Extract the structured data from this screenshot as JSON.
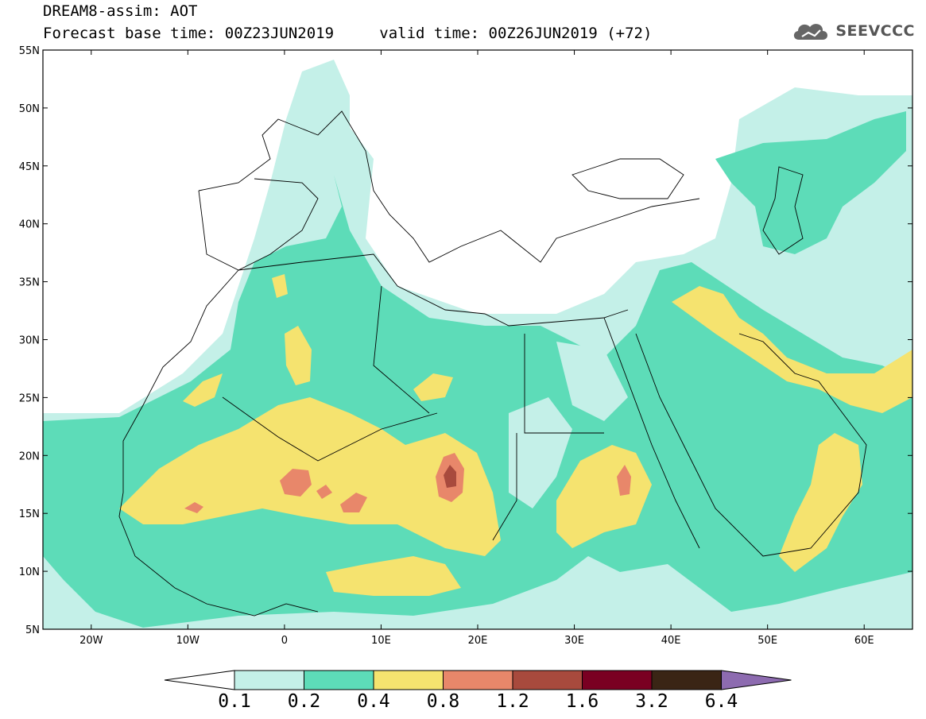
{
  "header": {
    "title": "DREAM8-assim: AOT",
    "base_time": "Forecast base time: 00Z23JUN2019",
    "valid_time": "valid time: 00Z26JUN2019 (+72)"
  },
  "brand": {
    "name": "SEEVCCC",
    "icon": "cloud-icon"
  },
  "map": {
    "lon_range": [
      -25,
      65
    ],
    "lat_range": [
      5,
      55
    ],
    "lat_ticks": [
      "5N",
      "10N",
      "15N",
      "20N",
      "25N",
      "30N",
      "35N",
      "40N",
      "45N",
      "50N",
      "55N"
    ],
    "lon_ticks": [
      "20W",
      "10W",
      "0",
      "10E",
      "20E",
      "30E",
      "40E",
      "50E",
      "60E"
    ]
  },
  "colorbar": {
    "labels": [
      "0.1",
      "0.2",
      "0.4",
      "0.8",
      "1.2",
      "1.6",
      "3.2",
      "6.4"
    ],
    "colors": [
      "#c4f0e8",
      "#5ddcb8",
      "#f5e36f",
      "#e8876a",
      "#a84a3d",
      "#7a0022",
      "#3a2515",
      "#8d6bb0"
    ],
    "under_color": "#ffffff"
  }
}
